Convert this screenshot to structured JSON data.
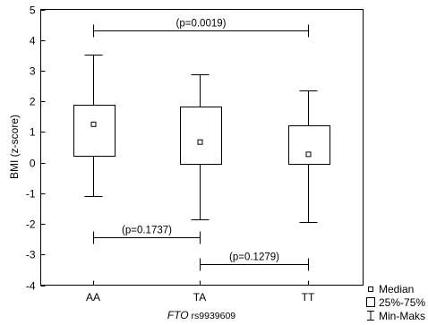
{
  "chart_data": {
    "type": "box",
    "ylabel": "BMI (z-score)",
    "xlabel_italic": "FTO",
    "xlabel_rest": " rs9939609",
    "ylim": [
      -4,
      5
    ],
    "yticks": [
      "5",
      "4",
      "3",
      "2",
      "1",
      "0",
      "-1",
      "-2",
      "-3",
      "-4"
    ],
    "ytick_values": [
      5,
      4,
      3,
      2,
      1,
      0,
      -1,
      -2,
      -3,
      -4
    ],
    "categories": [
      "AA",
      "TA",
      "TT"
    ],
    "boxes": [
      {
        "category": "AA",
        "min": -1.1,
        "q1": 0.22,
        "median": 1.25,
        "q3": 1.9,
        "max": 3.52
      },
      {
        "category": "TA",
        "min": -1.85,
        "q1": -0.05,
        "median": 0.67,
        "q3": 1.82,
        "max": 2.88
      },
      {
        "category": "TT",
        "min": -1.95,
        "q1": -0.05,
        "median": 0.27,
        "q3": 1.22,
        "max": 2.35
      }
    ],
    "comparisons": [
      {
        "from": "AA",
        "to": "TT",
        "y": 4.3,
        "label": "(p=0.0019)"
      },
      {
        "from": "AA",
        "to": "TA",
        "y": -2.45,
        "label": "(p=0.1737)"
      },
      {
        "from": "TA",
        "to": "TT",
        "y": -3.3,
        "label": "(p=0.1279)"
      }
    ],
    "legend": {
      "position": "bottom-right",
      "items": [
        "Median",
        "25%-75%",
        "Min-Maks"
      ]
    },
    "grid": false
  }
}
